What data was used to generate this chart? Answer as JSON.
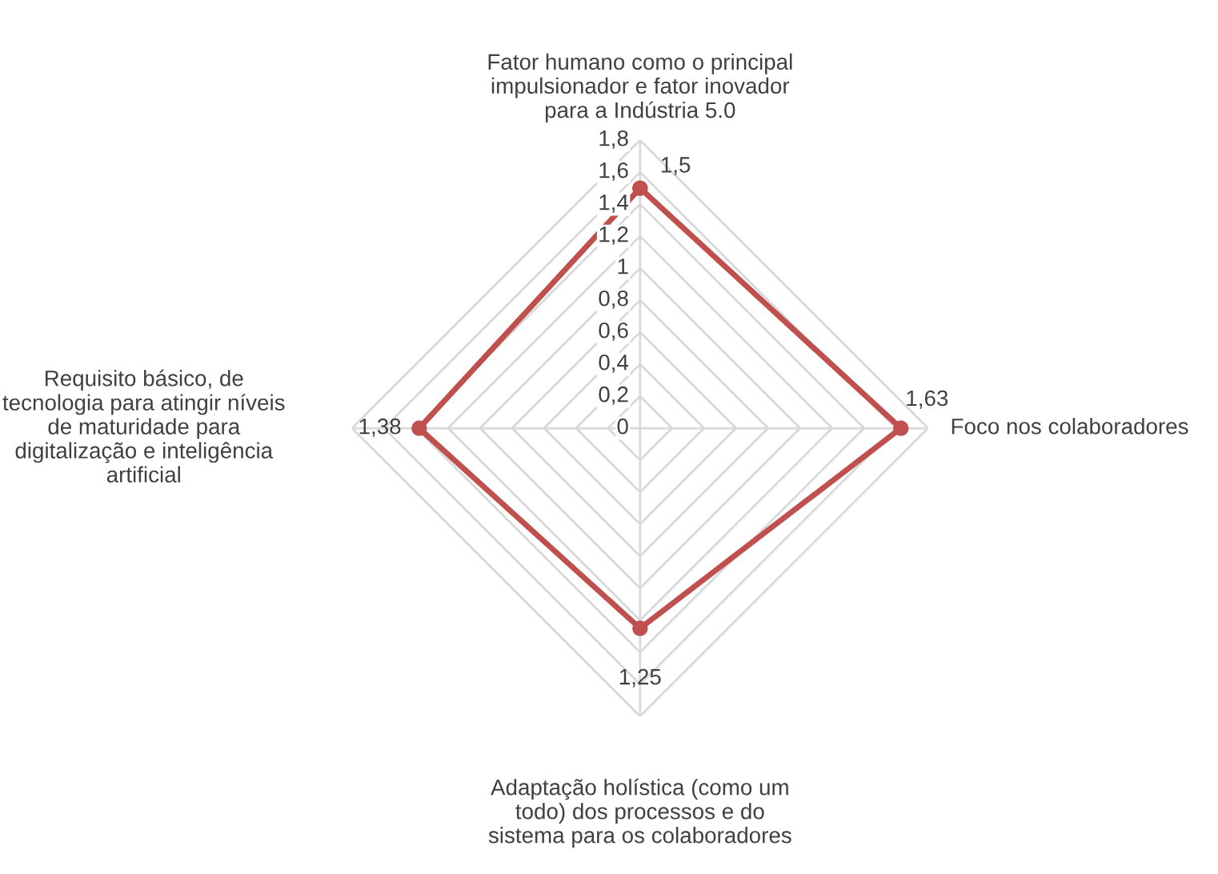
{
  "chart_data": {
    "type": "radar",
    "categories": [
      "Fator humano como o principal\nimpulsionador e fator inovador\npara a Indústria 5.0",
      "Foco nos colaboradores",
      "Adaptação holística (como um\ntodo) dos processos e do\nsistema para os colaboradores",
      "Requisito básico, de\ntecnologia para atingir níveis\nde maturidade para\ndigitalização e inteligência\nartificial"
    ],
    "series": [
      {
        "color": "#c0504d",
        "values": [
          1.5,
          1.63,
          1.25,
          1.38
        ],
        "value_labels": [
          "1,5",
          "1,63",
          "1,25",
          "1,38"
        ]
      }
    ],
    "ylim": [
      0,
      1.8
    ],
    "yticks": [
      0,
      {
        "value": 0.2,
        "label": "0,2"
      },
      {
        "value": 0.4,
        "label": "0,4"
      },
      {
        "value": 0.6,
        "label": "0,6"
      },
      {
        "value": 0.8,
        "label": "0,8"
      },
      1,
      {
        "value": 1.2,
        "label": "1,2"
      },
      {
        "value": 1.4,
        "label": "1,4"
      },
      {
        "value": 1.6,
        "label": "1,6"
      },
      {
        "value": 1.8,
        "label": "1,8"
      }
    ],
    "grid": true,
    "marker": "circle",
    "line_style": "solid",
    "legend": false
  }
}
